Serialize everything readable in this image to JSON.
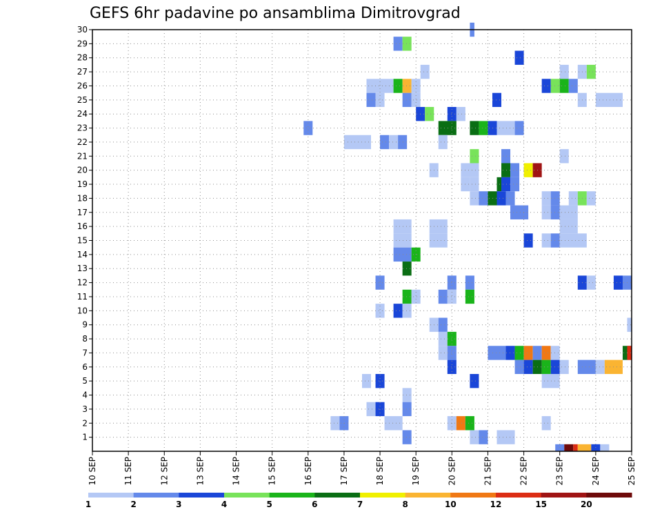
{
  "chart_data": {
    "type": "heatmap",
    "title": "GEFS 6hr padavine po ansamblima Dimitrovgrad",
    "xlabel": "",
    "ylabel": "",
    "x_ticks": [
      "10 SEP",
      "11 SEP",
      "12 SEP",
      "13 SEP",
      "14 SEP",
      "15 SEP",
      "16 SEP",
      "17 SEP",
      "18 SEP",
      "19 SEP",
      "20 SEP",
      "21 SEP",
      "22 SEP",
      "23 SEP",
      "24 SEP",
      "25 SEP"
    ],
    "xlim": [
      0,
      60
    ],
    "y_ticks": [
      1,
      2,
      3,
      4,
      5,
      6,
      7,
      8,
      9,
      10,
      11,
      12,
      13,
      14,
      15,
      16,
      17,
      18,
      19,
      20,
      21,
      22,
      23,
      24,
      25,
      26,
      27,
      28,
      29,
      30
    ],
    "ylim": [
      0,
      30
    ],
    "grid": true,
    "colorbar": {
      "labels": [
        "1",
        "2",
        "3",
        "4",
        "5",
        "6",
        "7",
        "8",
        "10",
        "12",
        "15",
        "20"
      ],
      "colors": [
        "#b4c8f5",
        "#6489ea",
        "#1a46d8",
        "#78e35a",
        "#1ab41a",
        "#0a6e14",
        "#f0f000",
        "#fab432",
        "#f07814",
        "#dc2d14",
        "#a01414",
        "#6e0a0a"
      ]
    },
    "cells": [
      {
        "m": 30,
        "x": [
          [
            42.0,
            42.5,
            2
          ]
        ]
      },
      {
        "m": 29,
        "x": [
          [
            33.5,
            34.5,
            2
          ],
          [
            34.5,
            35.5,
            4
          ]
        ]
      },
      {
        "m": 28,
        "x": [
          [
            47,
            48,
            3
          ]
        ]
      },
      {
        "m": 27,
        "x": [
          [
            36.5,
            37.5,
            1
          ],
          [
            52,
            53,
            1
          ],
          [
            54,
            55,
            1
          ],
          [
            55,
            56,
            4
          ]
        ]
      },
      {
        "m": 26,
        "x": [
          [
            30.5,
            33.5,
            1
          ],
          [
            33.5,
            34.5,
            5
          ],
          [
            34.5,
            35.5,
            8
          ],
          [
            35.5,
            36.5,
            1
          ],
          [
            50,
            51,
            3
          ],
          [
            51,
            52,
            4
          ],
          [
            52,
            53,
            5
          ],
          [
            53,
            54,
            2
          ]
        ]
      },
      {
        "m": 25,
        "x": [
          [
            30.5,
            31.5,
            2
          ],
          [
            31.5,
            32.5,
            1
          ],
          [
            34.5,
            35.5,
            2
          ],
          [
            35.5,
            36.5,
            1
          ],
          [
            44.5,
            45.5,
            3
          ],
          [
            54,
            55,
            1
          ],
          [
            56,
            59,
            1
          ]
        ]
      },
      {
        "m": 24,
        "x": [
          [
            36,
            37,
            3
          ],
          [
            37,
            38,
            4
          ],
          [
            39.5,
            40.5,
            3
          ],
          [
            40.5,
            41.5,
            1
          ]
        ]
      },
      {
        "m": 23,
        "x": [
          [
            23.5,
            24.5,
            2
          ],
          [
            38.5,
            40.5,
            6
          ],
          [
            42,
            43,
            6
          ],
          [
            43,
            44,
            5
          ],
          [
            44,
            45,
            3
          ],
          [
            45,
            47,
            1
          ],
          [
            47,
            48,
            2
          ]
        ]
      },
      {
        "m": 22,
        "x": [
          [
            28,
            31,
            1
          ],
          [
            32,
            33,
            2
          ],
          [
            33,
            34,
            1
          ],
          [
            34,
            35,
            2
          ],
          [
            38.5,
            39.5,
            1
          ]
        ]
      },
      {
        "m": 21,
        "x": [
          [
            42,
            43,
            4
          ],
          [
            45.5,
            46.5,
            2
          ],
          [
            52,
            53,
            1
          ]
        ]
      },
      {
        "m": 20,
        "x": [
          [
            37.5,
            38.5,
            1
          ],
          [
            41,
            43,
            1
          ],
          [
            45.5,
            46.5,
            6
          ],
          [
            46.5,
            47.5,
            2
          ],
          [
            48,
            49,
            7
          ],
          [
            49,
            50,
            11
          ]
        ]
      },
      {
        "m": 19,
        "x": [
          [
            41,
            42,
            1
          ],
          [
            42,
            43,
            1
          ],
          [
            45,
            45.5,
            6
          ],
          [
            45.5,
            46.5,
            3
          ],
          [
            46.5,
            47.5,
            2
          ]
        ]
      },
      {
        "m": 18,
        "x": [
          [
            42,
            43,
            1
          ],
          [
            43,
            44,
            2
          ],
          [
            44,
            45,
            6
          ],
          [
            45,
            46,
            3
          ],
          [
            46,
            47,
            2
          ],
          [
            50,
            51,
            1
          ],
          [
            51,
            52,
            2
          ],
          [
            53,
            54,
            1
          ],
          [
            54,
            55,
            4
          ],
          [
            55,
            56,
            1
          ]
        ]
      },
      {
        "m": 17,
        "x": [
          [
            46.5,
            48.5,
            2
          ],
          [
            50,
            51,
            1
          ],
          [
            51,
            52,
            2
          ],
          [
            52,
            54,
            1
          ]
        ]
      },
      {
        "m": 16,
        "x": [
          [
            33.5,
            35.5,
            1
          ],
          [
            37.5,
            39.5,
            1
          ],
          [
            52,
            54,
            1
          ]
        ]
      },
      {
        "m": 15,
        "x": [
          [
            33.5,
            35.5,
            1
          ],
          [
            37.5,
            39.5,
            1
          ],
          [
            48,
            49,
            3
          ],
          [
            50,
            51,
            1
          ],
          [
            51,
            52,
            2
          ],
          [
            52,
            55,
            1
          ]
        ]
      },
      {
        "m": 14,
        "x": [
          [
            33.5,
            35.5,
            2
          ],
          [
            35.5,
            36.5,
            5
          ]
        ]
      },
      {
        "m": 13,
        "x": [
          [
            34.5,
            35.5,
            6
          ]
        ]
      },
      {
        "m": 12,
        "x": [
          [
            31.5,
            32.5,
            2
          ],
          [
            39.5,
            40.5,
            2
          ],
          [
            41.5,
            42.5,
            2
          ],
          [
            54,
            55,
            3
          ],
          [
            55,
            56,
            1
          ],
          [
            58,
            59,
            3
          ],
          [
            59,
            60,
            2
          ]
        ]
      },
      {
        "m": 11,
        "x": [
          [
            34.5,
            35.5,
            5
          ],
          [
            35.5,
            36.5,
            1
          ],
          [
            38.5,
            39.5,
            2
          ],
          [
            39.5,
            40.5,
            1
          ],
          [
            41.5,
            42.5,
            5
          ]
        ]
      },
      {
        "m": 10,
        "x": [
          [
            31.5,
            32.5,
            1
          ],
          [
            33.5,
            34.5,
            3
          ],
          [
            34.5,
            35.5,
            1
          ]
        ]
      },
      {
        "m": 9,
        "x": [
          [
            37.5,
            38.5,
            1
          ],
          [
            38.5,
            39.5,
            2
          ],
          [
            59.5,
            60,
            1
          ]
        ]
      },
      {
        "m": 8,
        "x": [
          [
            38.5,
            39.5,
            1
          ],
          [
            39.5,
            40.5,
            5
          ]
        ]
      },
      {
        "m": 7,
        "x": [
          [
            38.5,
            39.5,
            1
          ],
          [
            39.5,
            40.5,
            2
          ],
          [
            44,
            46,
            2
          ],
          [
            46,
            47,
            3
          ],
          [
            47,
            48,
            5
          ],
          [
            48,
            49,
            9
          ],
          [
            49,
            50,
            2
          ],
          [
            50,
            51,
            9
          ],
          [
            51,
            52,
            1
          ],
          [
            59,
            60,
            6
          ],
          [
            59.5,
            60,
            10
          ]
        ]
      },
      {
        "m": 6,
        "x": [
          [
            39.5,
            40.5,
            3
          ],
          [
            47,
            48,
            2
          ],
          [
            48,
            49,
            3
          ],
          [
            49,
            50,
            6
          ],
          [
            50,
            51,
            5
          ],
          [
            51,
            52,
            3
          ],
          [
            52,
            53,
            1
          ],
          [
            54,
            56,
            2
          ],
          [
            56,
            57,
            1
          ],
          [
            57,
            59,
            8
          ]
        ]
      },
      {
        "m": 5,
        "x": [
          [
            30,
            31,
            1
          ],
          [
            31.5,
            32.5,
            3
          ],
          [
            42,
            43,
            3
          ],
          [
            50,
            52,
            1
          ]
        ]
      },
      {
        "m": 4,
        "x": [
          [
            34.5,
            35.5,
            1
          ]
        ]
      },
      {
        "m": 3,
        "x": [
          [
            30.5,
            31.5,
            1
          ],
          [
            31.5,
            32.5,
            3
          ],
          [
            34.5,
            35.5,
            2
          ]
        ]
      },
      {
        "m": 2,
        "x": [
          [
            26.5,
            27.5,
            1
          ],
          [
            27.5,
            28.5,
            2
          ],
          [
            32.5,
            34.5,
            1
          ],
          [
            39.5,
            40.5,
            1
          ],
          [
            40.5,
            41.5,
            9
          ],
          [
            41.5,
            42.5,
            5
          ],
          [
            50,
            51,
            1
          ]
        ]
      },
      {
        "m": 1,
        "x": [
          [
            34.5,
            35.5,
            2
          ],
          [
            42,
            43,
            1
          ],
          [
            43,
            44,
            2
          ],
          [
            45,
            47,
            1
          ]
        ]
      },
      {
        "m": 0,
        "x": [
          [
            51.5,
            52.5,
            2
          ],
          [
            52.5,
            53.5,
            12
          ],
          [
            53.5,
            54,
            10
          ],
          [
            54,
            55.5,
            8
          ],
          [
            55.5,
            56.5,
            3
          ],
          [
            56.5,
            57.5,
            1
          ]
        ]
      }
    ]
  }
}
